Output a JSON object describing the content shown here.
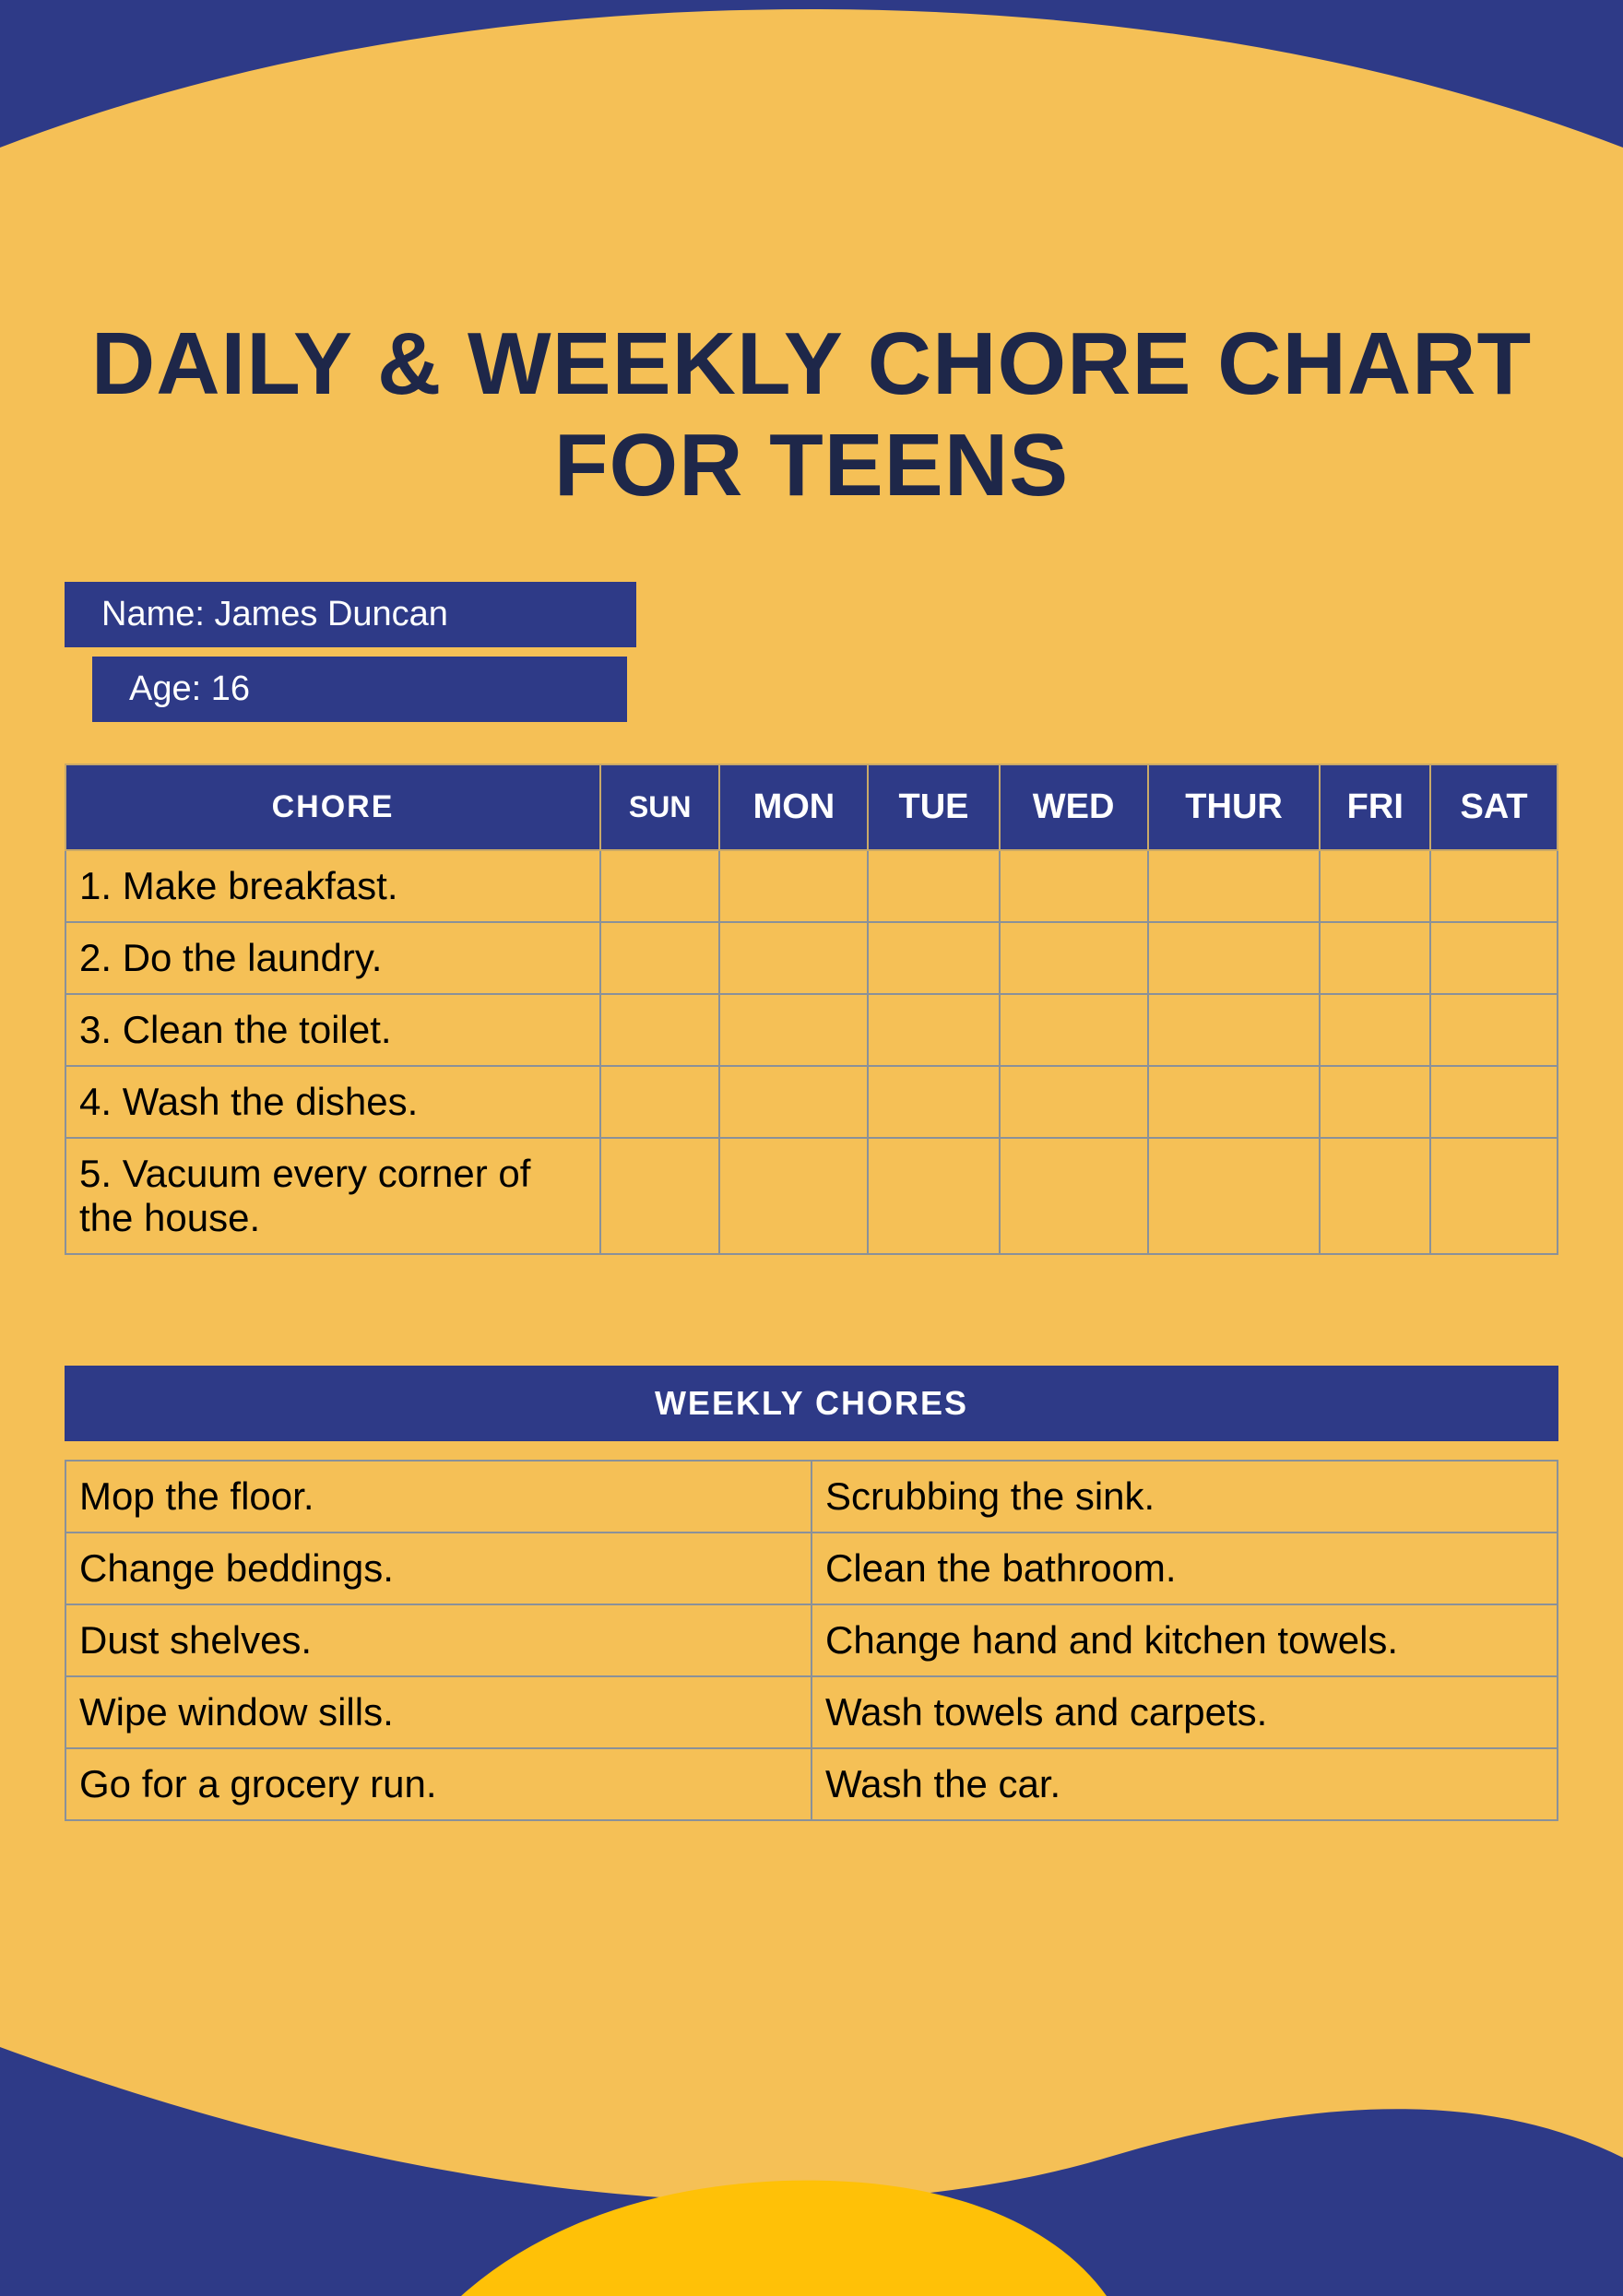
{
  "colors": {
    "background": "#f5c056",
    "accent": "#2e3a87",
    "title": "#1e2749",
    "text": "#000000",
    "white": "#ffffff",
    "border_gray": "#8a9199",
    "border_header": "#c9a968",
    "bright_yellow": "#ffc107"
  },
  "title": "DAILY & WEEKLY CHORE CHART FOR TEENS",
  "info": {
    "name_label": "Name: James Duncan",
    "age_label": "Age: 16"
  },
  "daily_table": {
    "chore_header": "CHORE",
    "days": [
      "SUN",
      "MON",
      "TUE",
      "WED",
      "THUR",
      "FRI",
      "SAT"
    ],
    "rows": [
      "1. Make breakfast.",
      "2. Do the laundry.",
      "3. Clean the toilet.",
      "4. Wash the dishes.",
      "5. Vacuum every corner of the house."
    ]
  },
  "weekly_section": {
    "header": "WEEKLY CHORES",
    "rows": [
      [
        "Mop the floor.",
        "Scrubbing the sink."
      ],
      [
        "Change beddings.",
        "Clean the bathroom."
      ],
      [
        "Dust shelves.",
        "Change hand and kitchen towels."
      ],
      [
        "Wipe window sills.",
        "Wash towels and carpets."
      ],
      [
        "Go for a grocery run.",
        "Wash the car."
      ]
    ]
  }
}
